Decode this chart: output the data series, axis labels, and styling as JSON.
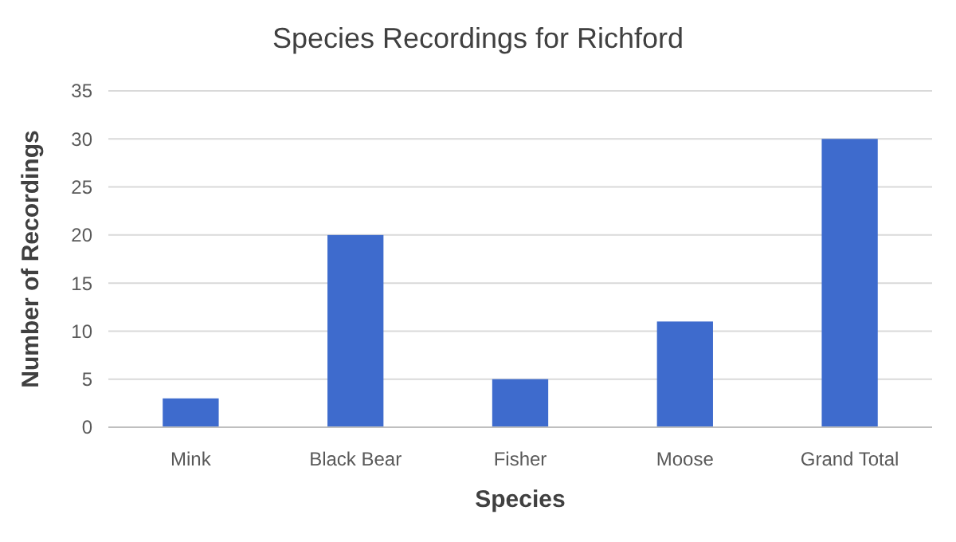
{
  "chart_data": {
    "type": "bar",
    "title": "Species Recordings for Richford",
    "xlabel": "Species",
    "ylabel": "Number of Recordings",
    "categories": [
      "Mink",
      "Black Bear",
      "Fisher",
      "Moose",
      "Grand Total"
    ],
    "values": [
      3,
      20,
      5,
      11,
      30
    ],
    "color": "#3e6bcd",
    "ylim": [
      0,
      35
    ],
    "yticks": [
      0,
      5,
      10,
      15,
      20,
      25,
      30,
      35
    ],
    "grid": "y"
  }
}
